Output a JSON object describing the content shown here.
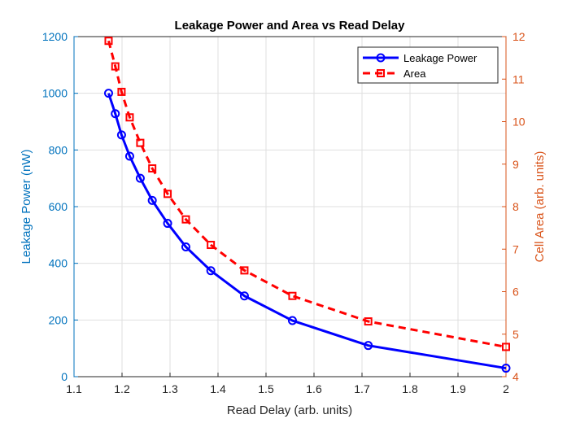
{
  "chart_data": {
    "type": "line",
    "title": "Leakage Power and Area vs Read Delay",
    "xlabel": "Read Delay (arb. units)",
    "ylabel_left": "Leakage Power (nW)",
    "ylabel_right": "Cell Area (arb. units)",
    "xlim": [
      1.1,
      2.0
    ],
    "ylim_left": [
      0,
      1200
    ],
    "ylim_right": [
      4,
      12
    ],
    "x_ticks": [
      "1.1",
      "1.2",
      "1.3",
      "1.4",
      "1.5",
      "1.6",
      "1.7",
      "1.8",
      "1.9",
      "2"
    ],
    "y_left_ticks": [
      "0",
      "200",
      "400",
      "600",
      "800",
      "1000",
      "1200"
    ],
    "y_right_ticks": [
      "4",
      "5",
      "6",
      "7",
      "8",
      "9",
      "10",
      "11",
      "12"
    ],
    "grid": true,
    "legend_position": "top-right",
    "series": [
      {
        "name": "Leakage Power",
        "axis": "left",
        "color": "#0000FF",
        "line_style": "solid",
        "marker": "circle",
        "x": [
          1.172,
          1.186,
          1.199,
          1.216,
          1.238,
          1.263,
          1.295,
          1.333,
          1.385,
          1.455,
          1.555,
          1.713,
          2.0
        ],
        "y": [
          1000,
          928,
          853,
          778,
          700,
          622,
          541,
          458,
          374,
          285,
          198,
          110,
          30
        ]
      },
      {
        "name": "Area",
        "axis": "right",
        "color": "#FF0000",
        "line_style": "dashed",
        "marker": "square",
        "x": [
          1.172,
          1.186,
          1.199,
          1.216,
          1.238,
          1.263,
          1.295,
          1.333,
          1.385,
          1.455,
          1.555,
          1.713,
          2.0
        ],
        "y": [
          11.9,
          11.3,
          10.7,
          10.1,
          9.5,
          8.9,
          8.3,
          7.7,
          7.1,
          6.5,
          5.9,
          5.3,
          4.7
        ]
      }
    ]
  },
  "colors": {
    "left_axis": "#0072BD",
    "right_axis": "#D95319",
    "grid": "#DFDFDF",
    "axes_box": "#262626"
  }
}
